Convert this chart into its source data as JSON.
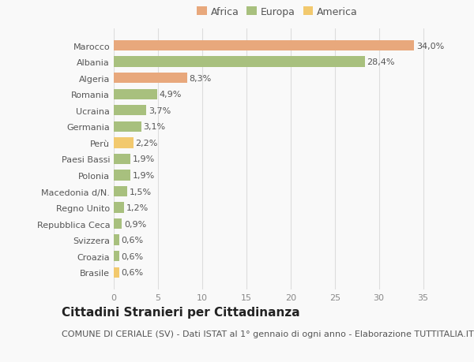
{
  "categories": [
    "Brasile",
    "Croazia",
    "Svizzera",
    "Repubblica Ceca",
    "Regno Unito",
    "Macedonia d/N.",
    "Polonia",
    "Paesi Bassi",
    "Perù",
    "Germania",
    "Ucraina",
    "Romania",
    "Algeria",
    "Albania",
    "Marocco"
  ],
  "values": [
    0.6,
    0.6,
    0.6,
    0.9,
    1.2,
    1.5,
    1.9,
    1.9,
    2.2,
    3.1,
    3.7,
    4.9,
    8.3,
    28.4,
    34.0
  ],
  "colors": [
    "#f2c96e",
    "#a8c07e",
    "#a8c07e",
    "#a8c07e",
    "#a8c07e",
    "#a8c07e",
    "#a8c07e",
    "#a8c07e",
    "#f2c96e",
    "#a8c07e",
    "#a8c07e",
    "#a8c07e",
    "#e8a87c",
    "#a8c07e",
    "#e8a87c"
  ],
  "labels": [
    "0,6%",
    "0,6%",
    "0,6%",
    "0,9%",
    "1,2%",
    "1,5%",
    "1,9%",
    "1,9%",
    "2,2%",
    "3,1%",
    "3,7%",
    "4,9%",
    "8,3%",
    "28,4%",
    "34,0%"
  ],
  "legend": [
    {
      "label": "Africa",
      "color": "#e8a87c"
    },
    {
      "label": "Europa",
      "color": "#a8c07e"
    },
    {
      "label": "America",
      "color": "#f2c96e"
    }
  ],
  "xlim": [
    0,
    37
  ],
  "xticks": [
    0,
    5,
    10,
    15,
    20,
    25,
    30,
    35
  ],
  "title": "Cittadini Stranieri per Cittadinanza",
  "subtitle": "COMUNE DI CERIALE (SV) - Dati ISTAT al 1° gennaio di ogni anno - Elaborazione TUTTITALIA.IT",
  "bg_color": "#f9f9f9",
  "grid_color": "#dddddd",
  "title_fontsize": 11,
  "subtitle_fontsize": 8,
  "label_fontsize": 8,
  "tick_fontsize": 8,
  "ytick_fontsize": 8
}
